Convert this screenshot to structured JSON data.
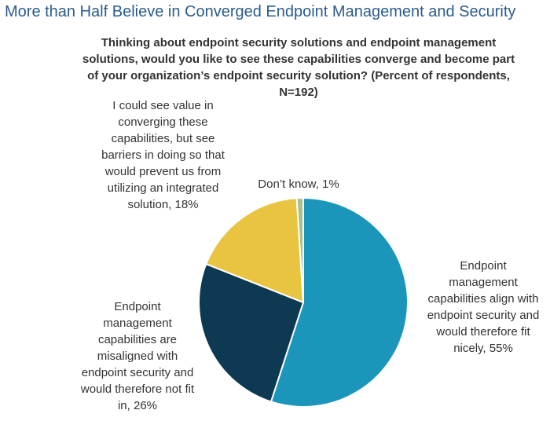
{
  "chart_data": {
    "type": "pie",
    "title": "More than Half Believe in Converged Endpoint Management and Security",
    "subtitle": "Thinking about endpoint security solutions and endpoint management solutions, would you like to see these capabilities converge and become part of your organization’s endpoint security solution? (Percent of respondents, N=192)",
    "categories": [
      "Endpoint management capabilities align with endpoint security and would therefore fit nicely,",
      "Endpoint management capabilities are misaligned with endpoint security and would therefore not fit in,",
      "I could see value in converging these capabilities, but see barriers in doing so that would prevent us from utilizing an integrated solution,",
      "Don’t know,"
    ],
    "values": [
      55,
      26,
      18,
      1
    ],
    "value_labels": [
      "55%",
      "26%",
      "18%",
      "1%"
    ],
    "colors": [
      "#1b96ba",
      "#0d3a52",
      "#e8c441",
      "#a9c08a"
    ]
  }
}
